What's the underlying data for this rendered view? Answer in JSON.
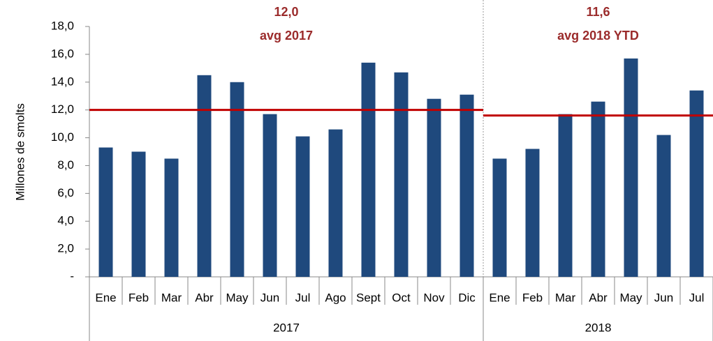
{
  "chart_data": {
    "type": "bar",
    "y_label": "Millones de smolts",
    "color": "#1f497d",
    "avg_color": "#c00000",
    "ylim": [
      0,
      18
    ],
    "yticks": [
      {
        "value": 0,
        "label": "-"
      },
      {
        "value": 2,
        "label": "2,0"
      },
      {
        "value": 4,
        "label": "4,0"
      },
      {
        "value": 6,
        "label": "6,0"
      },
      {
        "value": 8,
        "label": "8,0"
      },
      {
        "value": 10,
        "label": "10,0"
      },
      {
        "value": 12,
        "label": "12,0"
      },
      {
        "value": 14,
        "label": "14,0"
      },
      {
        "value": 16,
        "label": "16,0"
      },
      {
        "value": 18,
        "label": "18,0"
      }
    ],
    "groups": [
      {
        "name": "2017",
        "categories": [
          "Ene",
          "Feb",
          "Mar",
          "Abr",
          "May",
          "Jun",
          "Jul",
          "Ago",
          "Sept",
          "Oct",
          "Nov",
          "Dic"
        ],
        "values": [
          9.3,
          9.0,
          8.5,
          14.5,
          14.0,
          11.7,
          10.1,
          10.6,
          15.4,
          14.7,
          12.8,
          13.1
        ],
        "average": {
          "value": 12.0,
          "label": "12,0"
        },
        "average_label": "avg 2017"
      },
      {
        "name": "2018",
        "categories": [
          "Ene",
          "Feb",
          "Mar",
          "Abr",
          "May",
          "Jun",
          "Jul"
        ],
        "values": [
          8.5,
          9.2,
          11.7,
          12.6,
          15.7,
          10.2,
          13.4
        ],
        "average": {
          "value": 11.6,
          "label": "11,6"
        },
        "average_label": "avg 2018 YTD"
      }
    ]
  }
}
